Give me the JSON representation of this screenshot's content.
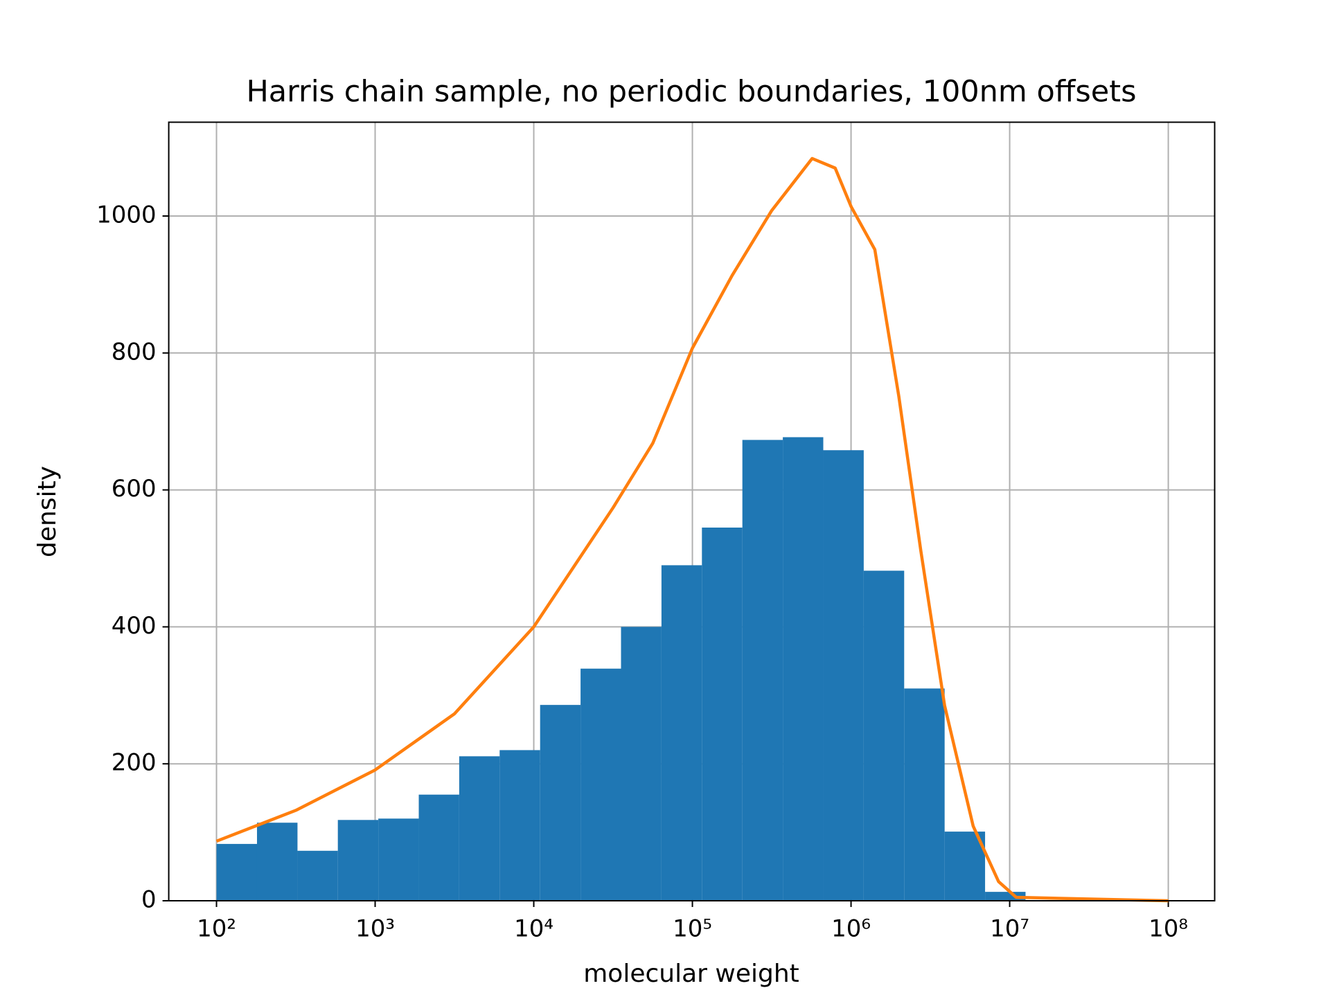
{
  "chart_data": {
    "type": "histogram",
    "title": "Harris chain sample, no periodic boundaries, 100nm offsets",
    "xlabel": "molecular weight",
    "ylabel": "density",
    "xscale": "log",
    "grid": true,
    "bins": [
      100,
      180,
      324,
      582,
      1047,
      1884,
      3388,
      6095,
      10965,
      19724,
      35481,
      63826,
      114815,
      206538,
      371535,
      668344,
      1202264,
      2162719,
      3890451,
      6998420,
      12589254
    ],
    "values": [
      83,
      114,
      73,
      118,
      120,
      155,
      211,
      220,
      286,
      339,
      400,
      490,
      545,
      673,
      677,
      658,
      482,
      310,
      101,
      13
    ],
    "color": "#1f77b4",
    "line": {
      "color": "#ff7f0e",
      "x": [
        100,
        316,
        1000,
        3162,
        10000,
        31623,
        56234,
        100000,
        177828,
        316228,
        568853,
        794328,
        1000000,
        1412538,
        2000000,
        2754229,
        3890451,
        5888437,
        8511380,
        11000000,
        100000000
      ],
      "values": [
        87,
        132,
        191,
        273,
        400,
        574,
        668,
        807,
        913,
        1008,
        1084,
        1070,
        1014,
        951,
        737,
        511,
        285,
        109,
        28,
        5,
        0
      ]
    },
    "xlim": [
      50,
      196000000
    ],
    "ylim": [
      0,
      1137
    ],
    "xticks": [
      {
        "value": 100,
        "label": "10²"
      },
      {
        "value": 1000,
        "label": "10³"
      },
      {
        "value": 10000,
        "label": "10⁴"
      },
      {
        "value": 100000,
        "label": "10⁵"
      },
      {
        "value": 1000000,
        "label": "10⁶"
      },
      {
        "value": 10000000,
        "label": "10⁷"
      },
      {
        "value": 100000000,
        "label": "10⁸"
      }
    ],
    "yticks": [
      0,
      200,
      400,
      600,
      800,
      1000
    ]
  }
}
